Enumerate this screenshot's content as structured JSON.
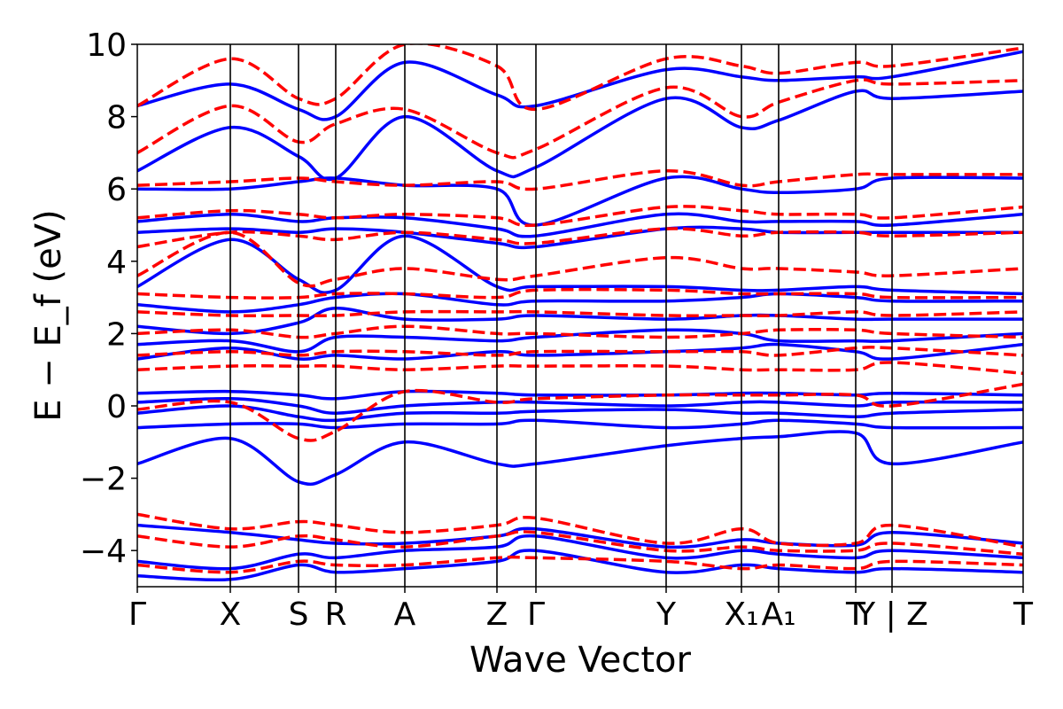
{
  "chart_data": {
    "type": "line",
    "title": "",
    "xlabel": "Wave Vector",
    "ylabel": "E − E_f (eV)",
    "ylim": [
      -5,
      10
    ],
    "grid": false,
    "legend": "none",
    "x_ticks": [
      {
        "label": "Γ",
        "k": 0.0
      },
      {
        "label": "X",
        "k": 1.05
      },
      {
        "label": "S",
        "k": 1.82
      },
      {
        "label": "R",
        "k": 2.24
      },
      {
        "label": "A",
        "k": 3.02
      },
      {
        "label": "Z",
        "k": 4.06
      },
      {
        "label": "Γ",
        "k": 4.5
      },
      {
        "label": "Y",
        "k": 5.97
      },
      {
        "label": "X₁",
        "k": 6.82
      },
      {
        "label": "A₁",
        "k": 7.24
      },
      {
        "label": "T",
        "k": 8.11
      },
      {
        "label": "Y | Z",
        "k": 8.52
      },
      {
        "label": "T",
        "k": 10.0
      }
    ],
    "y_ticks": [
      {
        "label": "−4",
        "v": -4
      },
      {
        "label": "−2",
        "v": -2
      },
      {
        "label": "0",
        "v": 0
      },
      {
        "label": "2",
        "v": 2
      },
      {
        "label": "4",
        "v": 4
      },
      {
        "label": "6",
        "v": 6
      },
      {
        "label": "8",
        "v": 8
      },
      {
        "label": "10",
        "v": 10
      }
    ],
    "series": [
      {
        "style": "solid",
        "color": "#0000ff",
        "bands": [
          [
            -3.3,
            -3.5,
            -3.7,
            -3.8,
            -3.8,
            -3.6,
            -3.4,
            -3.9,
            -3.7,
            -3.8,
            -3.85,
            -3.5,
            -3.8
          ],
          [
            -4.3,
            -4.5,
            -4.1,
            -4.2,
            -4.0,
            -3.9,
            -3.6,
            -4.2,
            -4.0,
            -4.1,
            -4.2,
            -4.0,
            -4.2
          ],
          [
            -4.7,
            -4.8,
            -4.4,
            -4.6,
            -4.5,
            -4.3,
            -4.0,
            -4.6,
            -4.4,
            -4.5,
            -4.6,
            -4.5,
            -4.6
          ],
          [
            -1.6,
            -0.9,
            -2.1,
            -1.9,
            -1.0,
            -1.6,
            -1.6,
            -1.1,
            -0.9,
            -0.85,
            -0.75,
            -1.6,
            -1.0
          ],
          [
            -0.6,
            -0.5,
            -0.5,
            -0.6,
            -0.5,
            -0.5,
            -0.4,
            -0.6,
            -0.5,
            -0.4,
            -0.5,
            -0.6,
            -0.6
          ],
          [
            -0.2,
            0.0,
            -0.3,
            -0.4,
            -0.2,
            -0.2,
            -0.15,
            -0.1,
            -0.2,
            -0.2,
            -0.3,
            -0.2,
            -0.1
          ],
          [
            0.1,
            0.2,
            0.0,
            -0.2,
            0.0,
            0.1,
            0.1,
            0.0,
            0.1,
            0.1,
            0.0,
            0.1,
            0.1
          ],
          [
            0.35,
            0.4,
            0.3,
            0.2,
            0.4,
            0.35,
            0.3,
            0.3,
            0.35,
            0.35,
            0.3,
            0.35,
            0.3
          ],
          [
            1.3,
            1.6,
            1.3,
            1.4,
            1.3,
            1.5,
            1.4,
            1.5,
            1.6,
            1.7,
            1.5,
            1.3,
            1.7
          ],
          [
            1.7,
            1.8,
            1.5,
            1.9,
            1.9,
            1.8,
            1.9,
            2.1,
            2.0,
            1.8,
            1.8,
            1.8,
            2.0
          ],
          [
            2.2,
            2.0,
            2.3,
            2.7,
            2.4,
            2.4,
            2.5,
            2.4,
            2.5,
            2.5,
            2.4,
            2.4,
            2.4
          ],
          [
            2.8,
            2.6,
            2.8,
            3.0,
            3.1,
            2.8,
            2.9,
            2.9,
            3.0,
            3.1,
            3.0,
            2.9,
            2.9
          ],
          [
            3.3,
            4.6,
            3.5,
            3.2,
            4.7,
            3.3,
            3.3,
            3.3,
            3.2,
            3.2,
            3.3,
            3.2,
            3.1
          ],
          [
            4.8,
            4.9,
            4.8,
            4.9,
            4.8,
            4.5,
            4.4,
            4.9,
            4.9,
            4.8,
            4.8,
            4.8,
            4.8
          ],
          [
            5.1,
            5.3,
            5.1,
            5.2,
            5.2,
            4.9,
            4.7,
            5.3,
            5.1,
            5.1,
            5.1,
            5.0,
            5.3
          ],
          [
            6.0,
            6.0,
            6.2,
            6.3,
            6.1,
            6.0,
            5.0,
            6.3,
            6.0,
            5.9,
            6.0,
            6.3,
            6.3
          ],
          [
            6.5,
            7.7,
            6.9,
            6.3,
            8.0,
            6.5,
            6.6,
            8.5,
            7.7,
            7.9,
            8.7,
            8.5,
            8.7
          ],
          [
            8.3,
            8.9,
            8.2,
            8.0,
            9.5,
            8.6,
            8.3,
            9.3,
            9.1,
            9.0,
            9.1,
            9.1,
            9.8
          ]
        ]
      },
      {
        "style": "dashed",
        "color": "#ff0000",
        "bands": [
          [
            -3.0,
            -3.4,
            -3.2,
            -3.3,
            -3.5,
            -3.3,
            -3.1,
            -3.8,
            -3.4,
            -3.8,
            -3.8,
            -3.3,
            -3.9
          ],
          [
            -3.6,
            -3.9,
            -3.6,
            -3.7,
            -3.9,
            -3.6,
            -3.5,
            -4.0,
            -3.9,
            -4.0,
            -4.0,
            -3.8,
            -4.1
          ],
          [
            -4.4,
            -4.6,
            -4.3,
            -4.4,
            -4.4,
            -4.2,
            -4.2,
            -4.3,
            -4.5,
            -4.4,
            -4.5,
            -4.3,
            -4.4
          ],
          [
            -0.1,
            0.1,
            -0.9,
            -0.7,
            0.4,
            0.1,
            0.2,
            0.3,
            0.3,
            0.3,
            0.3,
            0.0,
            0.6
          ],
          [
            1.0,
            1.1,
            1.1,
            1.1,
            1.0,
            1.1,
            1.1,
            1.1,
            1.0,
            1.0,
            1.0,
            1.2,
            0.9
          ],
          [
            1.4,
            1.5,
            1.4,
            1.5,
            1.5,
            1.4,
            1.5,
            1.5,
            1.5,
            1.4,
            1.6,
            1.6,
            1.4
          ],
          [
            2.0,
            2.1,
            1.9,
            2.0,
            2.2,
            2.0,
            2.0,
            1.9,
            2.0,
            2.1,
            2.1,
            2.0,
            1.9
          ],
          [
            2.6,
            2.5,
            2.5,
            2.5,
            2.6,
            2.6,
            2.6,
            2.5,
            2.5,
            2.5,
            2.6,
            2.5,
            2.6
          ],
          [
            3.1,
            3.0,
            3.0,
            3.1,
            3.1,
            3.0,
            3.2,
            3.2,
            3.1,
            3.1,
            3.1,
            3.0,
            3.0
          ],
          [
            3.6,
            4.8,
            3.4,
            3.5,
            3.8,
            3.5,
            3.6,
            4.1,
            3.8,
            3.8,
            3.7,
            3.6,
            3.8
          ],
          [
            4.4,
            4.8,
            4.7,
            4.6,
            4.8,
            4.6,
            4.5,
            4.9,
            4.7,
            4.8,
            4.8,
            4.7,
            4.8
          ],
          [
            5.2,
            5.4,
            5.3,
            5.2,
            5.3,
            5.2,
            5.0,
            5.5,
            5.4,
            5.3,
            5.3,
            5.2,
            5.5
          ],
          [
            6.1,
            6.2,
            6.3,
            6.2,
            6.1,
            6.2,
            6.0,
            6.5,
            6.1,
            6.2,
            6.4,
            6.4,
            6.4
          ],
          [
            7.0,
            8.3,
            7.3,
            7.8,
            8.2,
            7.0,
            7.1,
            8.8,
            8.0,
            8.4,
            9.0,
            8.9,
            9.0
          ],
          [
            8.3,
            9.6,
            8.5,
            8.5,
            10.0,
            9.4,
            8.2,
            9.6,
            9.4,
            9.2,
            9.5,
            9.4,
            9.9
          ]
        ]
      }
    ]
  }
}
